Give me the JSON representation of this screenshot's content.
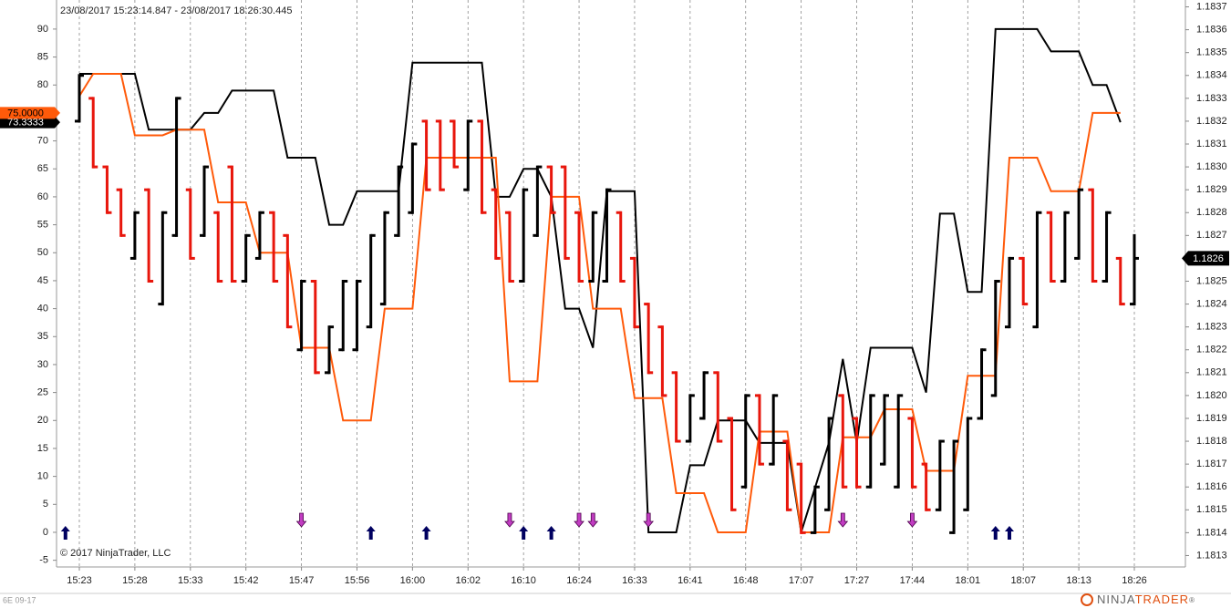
{
  "chart_data": {
    "type": "ohlc",
    "subtitle": "23/08/2017 15:23:14.847 - 23/08/2017 18:26:30.445",
    "copyright": "© 2017 NinjaTrader, LLC",
    "instrument": "6E 09-17",
    "brand": [
      "NINJA",
      "TRADER",
      "®"
    ],
    "categories": [
      "15:23",
      null,
      null,
      null,
      "15:28",
      null,
      null,
      null,
      "15:33",
      null,
      null,
      null,
      "15:42",
      null,
      null,
      null,
      "15:47",
      null,
      null,
      null,
      "15:56",
      null,
      null,
      null,
      "16:00",
      null,
      null,
      null,
      "16:02",
      null,
      null,
      null,
      "16:10",
      null,
      null,
      null,
      "16:24",
      null,
      null,
      null,
      "16:33",
      null,
      null,
      null,
      "16:41",
      null,
      null,
      null,
      "16:48",
      null,
      null,
      null,
      "17:07",
      null,
      null,
      null,
      "17:27",
      null,
      null,
      null,
      "17:44",
      null,
      null,
      null,
      "18:01",
      null,
      null,
      null,
      "18:07",
      null,
      null,
      null,
      "18:13",
      null,
      null,
      null,
      "18:26"
    ],
    "grid": "x",
    "ylim": [
      -6.2,
      95.2
    ],
    "yticks": [
      -5,
      0,
      5,
      10,
      15,
      20,
      25,
      30,
      35,
      40,
      45,
      50,
      55,
      60,
      65,
      70,
      75,
      80,
      85,
      90
    ],
    "y2lim": [
      1.18125,
      1.18373
    ],
    "y2ticks": [
      1.1813,
      1.1814,
      1.1815,
      1.1816,
      1.1817,
      1.1818,
      1.1819,
      {
        "value": 1.182,
        "label": "1.1820"
      },
      1.1821,
      1.1822,
      1.1823,
      1.1824,
      1.1825,
      1.1826,
      1.1827,
      1.1828,
      1.1829,
      {
        "value": 1.183,
        "label": "1.1830"
      },
      1.1831,
      1.1832,
      1.1833,
      1.1834,
      1.1835,
      1.1836,
      1.1837
    ],
    "ohlc": {
      "axis": "y2",
      "up_color": "#000000",
      "down_color": "#e8160c",
      "open": [
        1.1832,
        1.1833,
        1.183,
        1.1829,
        1.1826,
        1.1829,
        1.1824,
        1.1827,
        1.1829,
        1.1827,
        1.1828,
        1.183,
        1.1825,
        1.1826,
        1.1828,
        1.1827,
        1.1822,
        1.1825,
        1.1821,
        1.1822,
        1.1822,
        1.1823,
        1.1824,
        1.1827,
        1.1828,
        1.1832,
        1.1832,
        1.1832,
        1.1829,
        1.1832,
        1.1829,
        1.1828,
        1.1825,
        1.1827,
        1.183,
        1.183,
        1.1828,
        1.1825,
        1.1825,
        1.1828,
        1.1826,
        1.1824,
        1.1823,
        1.1821,
        1.1818,
        1.1819,
        1.1821,
        1.1819,
        1.1816,
        1.182,
        1.1817,
        1.1818,
        1.1817,
        1.1814,
        1.1815,
        1.182,
        1.1819,
        1.1816,
        1.1817,
        1.1816,
        1.1819,
        1.1817,
        1.1815,
        1.1814,
        1.1815,
        1.1819,
        1.182,
        1.1823,
        1.1826,
        1.1823,
        1.1828,
        1.1825,
        1.1826,
        1.1829,
        1.1825,
        1.1826,
        1.1824
      ],
      "high": [
        1.1834,
        1.1833,
        1.183,
        1.1829,
        1.1828,
        1.1829,
        1.1828,
        1.1833,
        1.1829,
        1.183,
        1.1828,
        1.183,
        1.1827,
        1.1828,
        1.1828,
        1.1827,
        1.1825,
        1.1825,
        1.1823,
        1.1825,
        1.1825,
        1.1827,
        1.1828,
        1.183,
        1.1831,
        1.1832,
        1.1832,
        1.1832,
        1.1832,
        1.1832,
        1.1829,
        1.1828,
        1.1829,
        1.183,
        1.183,
        1.183,
        1.1828,
        1.1828,
        1.1829,
        1.1828,
        1.1826,
        1.1824,
        1.1823,
        1.1821,
        1.182,
        1.1821,
        1.1821,
        1.1819,
        1.182,
        1.182,
        1.182,
        1.1818,
        1.1817,
        1.1816,
        1.1819,
        1.182,
        1.1819,
        1.182,
        1.182,
        1.182,
        1.1819,
        1.1817,
        1.1818,
        1.1818,
        1.1819,
        1.1822,
        1.1825,
        1.1826,
        1.1826,
        1.1828,
        1.1828,
        1.1828,
        1.1829,
        1.1829,
        1.1828,
        1.1826,
        1.1827
      ],
      "low": [
        1.1832,
        1.183,
        1.1828,
        1.1827,
        1.1826,
        1.1825,
        1.1824,
        1.1827,
        1.1826,
        1.1827,
        1.1825,
        1.1825,
        1.1825,
        1.1826,
        1.1825,
        1.1823,
        1.1822,
        1.1821,
        1.1821,
        1.1822,
        1.1822,
        1.1823,
        1.1824,
        1.1827,
        1.1828,
        1.1829,
        1.1829,
        1.183,
        1.1829,
        1.1828,
        1.1826,
        1.1825,
        1.1825,
        1.1827,
        1.1828,
        1.1826,
        1.1825,
        1.1825,
        1.1825,
        1.1825,
        1.1823,
        1.1821,
        1.182,
        1.1818,
        1.1818,
        1.1819,
        1.1818,
        1.1815,
        1.1816,
        1.1817,
        1.1817,
        1.1815,
        1.1814,
        1.1814,
        1.1815,
        1.1816,
        1.1816,
        1.1816,
        1.1817,
        1.1816,
        1.1816,
        1.1815,
        1.1815,
        1.1814,
        1.1815,
        1.1819,
        1.182,
        1.1823,
        1.1824,
        1.1823,
        1.1825,
        1.1825,
        1.1826,
        1.1825,
        1.1825,
        1.1824,
        1.1824
      ],
      "close": [
        1.1834,
        1.183,
        1.1828,
        1.1827,
        1.1828,
        1.1825,
        1.1828,
        1.1833,
        1.1826,
        1.183,
        1.1825,
        1.1825,
        1.1827,
        1.1828,
        1.1825,
        1.1823,
        1.1825,
        1.1821,
        1.1823,
        1.1825,
        1.1825,
        1.1827,
        1.1828,
        1.183,
        1.1831,
        1.1829,
        1.1829,
        1.183,
        1.1832,
        1.1828,
        1.1826,
        1.1825,
        1.1829,
        1.183,
        1.1828,
        1.1826,
        1.1825,
        1.1828,
        1.1829,
        1.1825,
        1.1823,
        1.1821,
        1.182,
        1.1818,
        1.182,
        1.1821,
        1.1818,
        1.1815,
        1.182,
        1.1817,
        1.182,
        1.1815,
        1.1814,
        1.1816,
        1.1819,
        1.1816,
        1.1816,
        1.182,
        1.182,
        1.182,
        1.1816,
        1.1815,
        1.1818,
        1.1818,
        1.1819,
        1.1822,
        1.1825,
        1.1826,
        1.1824,
        1.1828,
        1.1825,
        1.1828,
        1.1829,
        1.1825,
        1.1828,
        1.1824,
        1.1826
      ]
    },
    "indicators": [
      {
        "color": "#000000",
        "values": [
          82,
          82,
          82,
          82,
          82,
          72,
          72,
          72,
          72,
          75,
          75,
          79,
          79,
          79,
          79,
          67,
          67,
          67,
          55,
          55,
          61,
          61,
          61,
          61,
          84,
          84,
          84,
          84,
          84,
          84,
          60,
          60,
          65,
          65,
          60,
          40,
          40,
          33,
          61,
          61,
          61,
          0,
          0,
          0,
          12,
          12,
          20,
          20,
          20,
          16,
          16,
          16,
          0,
          8,
          16,
          31,
          16,
          33,
          33,
          33,
          33,
          25,
          57,
          57,
          43,
          43,
          90,
          90,
          90,
          90,
          86,
          86,
          86,
          80,
          80,
          73.3333,
          null
        ]
      },
      {
        "color": "#ff5a0a",
        "values": [
          78,
          82,
          82,
          82,
          71,
          71,
          71,
          72,
          72,
          72,
          59,
          59,
          59,
          50,
          50,
          50,
          33,
          33,
          33,
          20,
          20,
          20,
          40,
          40,
          40,
          67,
          67,
          67,
          67,
          67,
          67,
          27,
          27,
          27,
          60,
          60,
          60,
          40,
          40,
          40,
          24,
          24,
          24,
          7,
          7,
          7,
          0,
          0,
          0,
          18,
          18,
          18,
          0,
          0,
          0,
          17,
          17,
          17,
          22,
          22,
          22,
          11,
          11,
          11,
          28,
          28,
          28,
          67,
          67,
          67,
          61,
          61,
          61,
          75,
          75,
          75,
          null
        ]
      }
    ],
    "last_labels": [
      {
        "value": 73.3333,
        "label": "73.3333",
        "color": "#000000",
        "text_color": "#ffffff"
      },
      {
        "value": 75,
        "label": "75.0000",
        "color": "#ff5a0a",
        "text_color": "#000000"
      }
    ],
    "last_price": 1.1826,
    "signals": {
      "up": [
        -1,
        21,
        25,
        32,
        34,
        66,
        67
      ],
      "up_color": "#000060",
      "down": [
        16,
        31,
        36,
        37,
        41,
        55,
        60
      ],
      "down_color": "#c23dc2"
    }
  }
}
